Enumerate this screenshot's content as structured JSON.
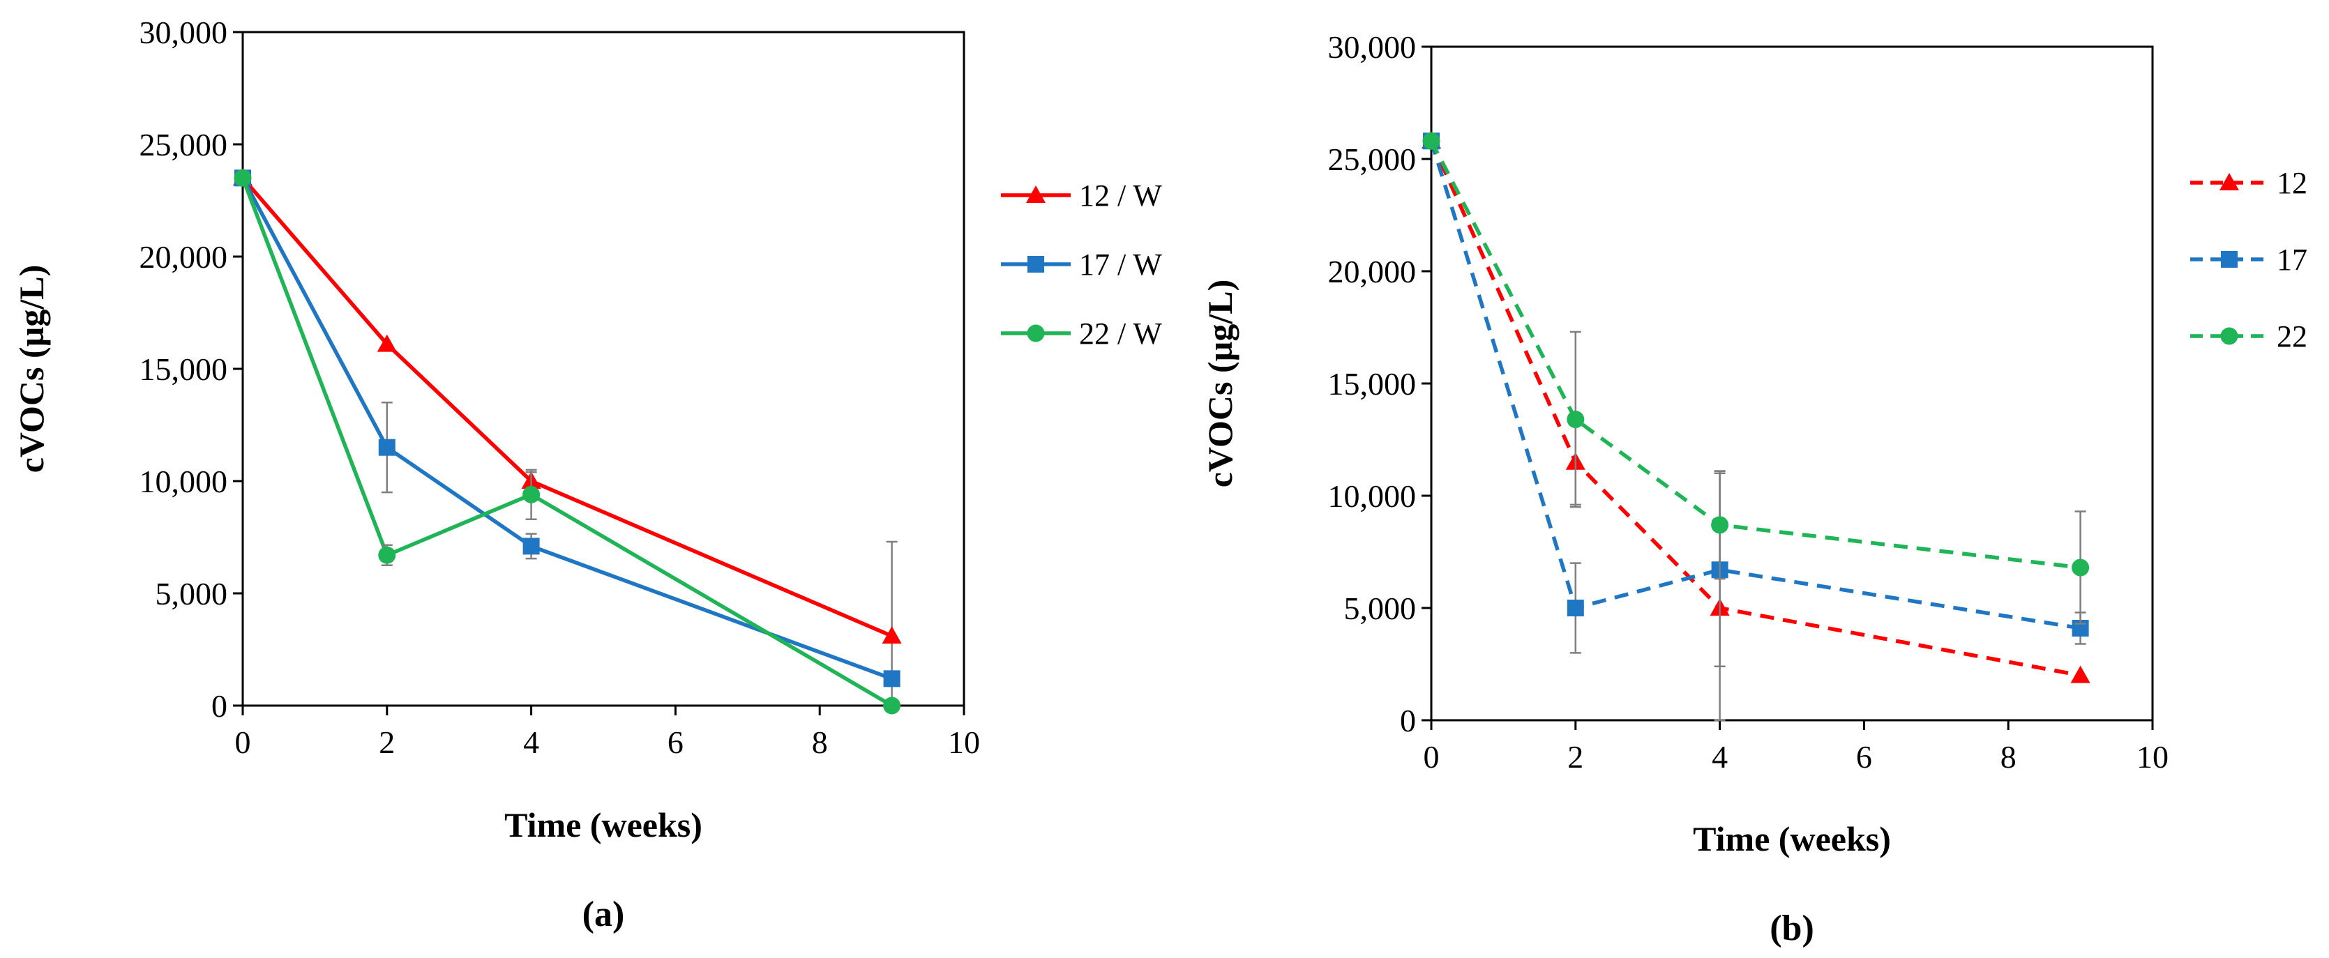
{
  "chart_data": [
    {
      "id": "a",
      "type": "line",
      "panel_label": "(a)",
      "xlabel": "Time (weeks)",
      "ylabel": "cVOCs (µg/L)",
      "xlim": [
        0,
        10
      ],
      "ylim": [
        0,
        30000
      ],
      "xticks": [
        0,
        2,
        4,
        6,
        8,
        10
      ],
      "yticks": [
        0,
        5000,
        10000,
        15000,
        20000,
        25000,
        30000
      ],
      "ytick_labels": [
        "0",
        "5,000",
        "10,000",
        "15,000",
        "20,000",
        "25,000",
        "30,000"
      ],
      "dashed": false,
      "legend_position": "right",
      "series": [
        {
          "name": "12 / W",
          "color": "#ff0000",
          "marker": "triangle",
          "x": [
            0,
            2,
            4,
            9
          ],
          "y": [
            23500,
            16100,
            10000,
            3100
          ],
          "err": [
            0,
            0,
            400,
            4200
          ]
        },
        {
          "name": "17 / W",
          "color": "#1f77c4",
          "marker": "square",
          "x": [
            0,
            2,
            4,
            9
          ],
          "y": [
            23500,
            11500,
            7100,
            1200
          ],
          "err": [
            0,
            2000,
            550,
            0
          ]
        },
        {
          "name": "22 / W",
          "color": "#1fb455",
          "marker": "circle",
          "x": [
            0,
            2,
            4,
            9
          ],
          "y": [
            23500,
            6700,
            9400,
            0
          ],
          "err": [
            0,
            450,
            1100,
            0
          ]
        }
      ]
    },
    {
      "id": "b",
      "type": "line",
      "panel_label": "(b)",
      "xlabel": "Time (weeks)",
      "ylabel": "cVOCs (µg/L)",
      "xlim": [
        0,
        10
      ],
      "ylim": [
        0,
        30000
      ],
      "xticks": [
        0,
        2,
        4,
        6,
        8,
        10
      ],
      "yticks": [
        0,
        5000,
        10000,
        15000,
        20000,
        25000,
        30000
      ],
      "ytick_labels": [
        "0",
        "5,000",
        "10,000",
        "15,000",
        "20,000",
        "25,000",
        "30,000"
      ],
      "dashed": true,
      "legend_position": "right",
      "series": [
        {
          "name": "12",
          "color": "#ff0000",
          "marker": "triangle",
          "x": [
            0,
            2,
            4,
            9
          ],
          "y": [
            25800,
            11500,
            5000,
            2000
          ],
          "err": [
            0,
            1900,
            6100,
            0
          ]
        },
        {
          "name": "17",
          "color": "#1f77c4",
          "marker": "square",
          "x": [
            0,
            2,
            4,
            9
          ],
          "y": [
            25800,
            5000,
            6700,
            4100
          ],
          "err": [
            0,
            2000,
            4300,
            700
          ]
        },
        {
          "name": "22",
          "color": "#1fb455",
          "marker": "circle",
          "x": [
            0,
            2,
            4,
            9
          ],
          "y": [
            25800,
            13400,
            8700,
            6800
          ],
          "err": [
            0,
            3900,
            2400,
            2500
          ]
        }
      ]
    }
  ]
}
